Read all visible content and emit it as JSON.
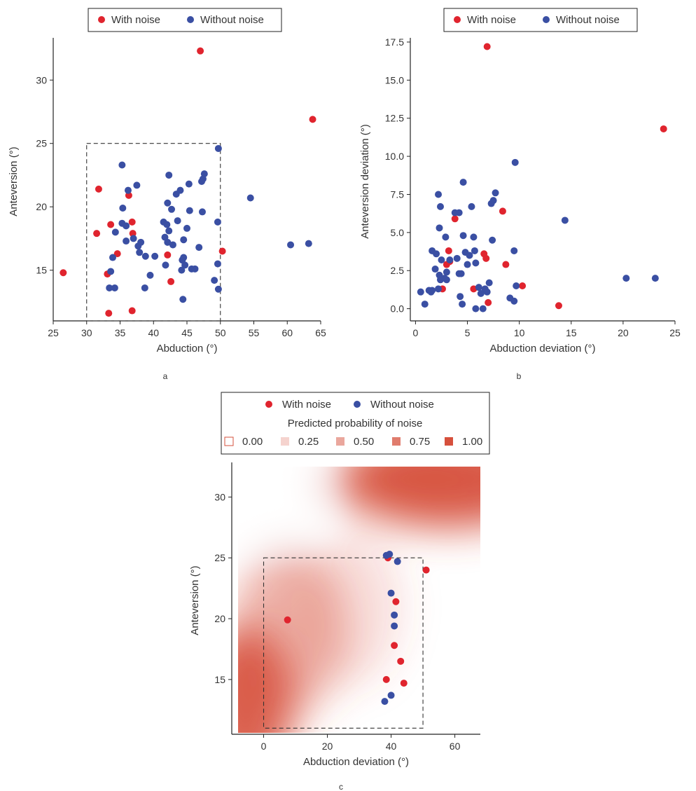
{
  "colors": {
    "noise": "#e0242e",
    "no_noise": "#3a4fa3",
    "heat_high": "#d6503c"
  },
  "chart_data": [
    {
      "id": "a",
      "type": "scatter",
      "panel_label": "a",
      "xlabel": "Abduction (°)",
      "ylabel": "Anteversion (°)",
      "xlim": [
        25,
        65
      ],
      "ylim": [
        11,
        33
      ],
      "xticks": [
        25,
        30,
        35,
        40,
        45,
        50,
        55,
        60,
        65
      ],
      "yticks": [
        15,
        20,
        25,
        30
      ],
      "safe_zone": {
        "x": [
          30,
          50
        ],
        "y": [
          11,
          25
        ]
      },
      "legend": {
        "placement": "top",
        "entries": [
          "With noise",
          "Without noise"
        ]
      },
      "series": [
        {
          "name": "With noise",
          "color": "#e0242e",
          "points": [
            [
              26.5,
              14.8
            ],
            [
              31.5,
              17.9
            ],
            [
              31.8,
              21.4
            ],
            [
              33.1,
              14.7
            ],
            [
              33.3,
              11.6
            ],
            [
              33.6,
              18.6
            ],
            [
              34.6,
              16.3
            ],
            [
              36.3,
              20.9
            ],
            [
              36.8,
              18.8
            ],
            [
              36.9,
              17.9
            ],
            [
              36.8,
              11.8
            ],
            [
              42.1,
              16.2
            ],
            [
              42.6,
              14.1
            ],
            [
              47.0,
              32.3
            ],
            [
              50.3,
              16.5
            ],
            [
              63.8,
              26.9
            ]
          ]
        },
        {
          "name": "Without noise",
          "color": "#3a4fa3",
          "points": [
            [
              33.4,
              13.6
            ],
            [
              33.6,
              14.9
            ],
            [
              33.9,
              16.0
            ],
            [
              34.2,
              13.6
            ],
            [
              34.3,
              18.0
            ],
            [
              35.3,
              18.7
            ],
            [
              35.3,
              23.3
            ],
            [
              35.4,
              19.9
            ],
            [
              35.9,
              17.3
            ],
            [
              35.9,
              18.5
            ],
            [
              36.2,
              21.3
            ],
            [
              37.0,
              17.5
            ],
            [
              37.5,
              21.7
            ],
            [
              37.7,
              16.9
            ],
            [
              37.9,
              16.4
            ],
            [
              38.1,
              17.2
            ],
            [
              38.7,
              13.6
            ],
            [
              38.8,
              16.1
            ],
            [
              39.5,
              14.6
            ],
            [
              40.2,
              16.1
            ],
            [
              41.5,
              18.8
            ],
            [
              41.7,
              17.6
            ],
            [
              41.8,
              15.4
            ],
            [
              42.0,
              18.6
            ],
            [
              42.1,
              17.2
            ],
            [
              42.1,
              20.3
            ],
            [
              42.3,
              22.5
            ],
            [
              42.3,
              18.1
            ],
            [
              42.7,
              19.8
            ],
            [
              42.9,
              17.0
            ],
            [
              43.4,
              21.0
            ],
            [
              43.6,
              18.9
            ],
            [
              44.0,
              21.3
            ],
            [
              44.2,
              15.0
            ],
            [
              44.3,
              15.8
            ],
            [
              44.4,
              12.7
            ],
            [
              44.5,
              16.0
            ],
            [
              44.5,
              17.4
            ],
            [
              44.7,
              15.4
            ],
            [
              45.0,
              18.3
            ],
            [
              45.3,
              21.8
            ],
            [
              45.4,
              19.7
            ],
            [
              45.7,
              15.1
            ],
            [
              46.2,
              15.1
            ],
            [
              46.8,
              16.8
            ],
            [
              47.2,
              22.0
            ],
            [
              47.3,
              19.6
            ],
            [
              47.4,
              22.2
            ],
            [
              47.6,
              22.6
            ],
            [
              49.1,
              14.2
            ],
            [
              49.6,
              18.8
            ],
            [
              49.6,
              15.5
            ],
            [
              49.7,
              13.5
            ],
            [
              49.7,
              24.6
            ],
            [
              54.5,
              20.7
            ],
            [
              60.5,
              17.0
            ],
            [
              63.2,
              17.1
            ]
          ]
        }
      ]
    },
    {
      "id": "b",
      "type": "scatter",
      "panel_label": "b",
      "xlabel": "Abduction deviation (°)",
      "ylabel": "Anteversion deviation (°)",
      "xlim": [
        -0.5,
        25
      ],
      "ylim": [
        -0.8,
        17.5
      ],
      "xticks": [
        0,
        5,
        10,
        15,
        20,
        25
      ],
      "yticks": [
        0.0,
        2.5,
        5.0,
        7.5,
        10.0,
        12.5,
        15.0,
        17.5
      ],
      "ytick_labels": [
        "0.0",
        "2.5",
        "5.0",
        "7.5",
        "10.0",
        "12.5",
        "15.0",
        "17.5"
      ],
      "legend": {
        "placement": "top-right",
        "entries": [
          "With noise",
          "Without noise"
        ]
      },
      "series": [
        {
          "name": "With noise",
          "color": "#e0242e",
          "points": [
            [
              2.6,
              1.3
            ],
            [
              3.0,
              2.9
            ],
            [
              3.2,
              3.8
            ],
            [
              3.3,
              3.1
            ],
            [
              3.8,
              5.9
            ],
            [
              5.6,
              1.3
            ],
            [
              6.6,
              3.6
            ],
            [
              6.8,
              3.3
            ],
            [
              7.0,
              0.4
            ],
            [
              6.9,
              17.2
            ],
            [
              8.4,
              6.4
            ],
            [
              8.7,
              2.9
            ],
            [
              10.3,
              1.5
            ],
            [
              13.8,
              0.2
            ],
            [
              23.9,
              11.8
            ]
          ]
        },
        {
          "name": "Without noise",
          "color": "#3a4fa3",
          "points": [
            [
              0.5,
              1.1
            ],
            [
              0.9,
              0.3
            ],
            [
              1.3,
              1.2
            ],
            [
              1.5,
              1.1
            ],
            [
              1.6,
              3.8
            ],
            [
              1.6,
              1.2
            ],
            [
              1.9,
              2.6
            ],
            [
              2.0,
              3.6
            ],
            [
              2.2,
              7.5
            ],
            [
              2.2,
              1.3
            ],
            [
              2.3,
              5.3
            ],
            [
              2.3,
              2.2
            ],
            [
              2.4,
              6.7
            ],
            [
              2.4,
              1.9
            ],
            [
              2.5,
              3.2
            ],
            [
              2.8,
              2.0
            ],
            [
              2.9,
              4.7
            ],
            [
              3.0,
              2.4
            ],
            [
              3.0,
              1.9
            ],
            [
              3.3,
              3.2
            ],
            [
              3.8,
              6.3
            ],
            [
              4.0,
              3.3
            ],
            [
              4.2,
              2.3
            ],
            [
              4.2,
              6.3
            ],
            [
              4.3,
              0.8
            ],
            [
              4.4,
              2.3
            ],
            [
              4.5,
              0.3
            ],
            [
              4.6,
              4.8
            ],
            [
              4.6,
              8.3
            ],
            [
              4.8,
              3.7
            ],
            [
              5.0,
              2.9
            ],
            [
              5.2,
              3.5
            ],
            [
              5.4,
              6.7
            ],
            [
              5.6,
              4.7
            ],
            [
              5.7,
              3.8
            ],
            [
              5.8,
              3.0
            ],
            [
              5.8,
              0.0
            ],
            [
              6.1,
              1.4
            ],
            [
              6.3,
              1.0
            ],
            [
              6.5,
              0.0
            ],
            [
              6.7,
              1.3
            ],
            [
              6.9,
              1.1
            ],
            [
              7.1,
              1.7
            ],
            [
              7.3,
              6.9
            ],
            [
              7.4,
              4.5
            ],
            [
              7.5,
              7.1
            ],
            [
              7.7,
              7.6
            ],
            [
              9.1,
              0.7
            ],
            [
              9.5,
              3.8
            ],
            [
              9.5,
              0.5
            ],
            [
              9.6,
              9.6
            ],
            [
              9.7,
              1.5
            ],
            [
              14.4,
              5.8
            ],
            [
              20.3,
              2.0
            ],
            [
              23.1,
              2.0
            ]
          ]
        }
      ]
    },
    {
      "id": "c",
      "type": "heatmap",
      "panel_label": "c",
      "xlabel": "Abduction deviation (°)",
      "ylabel": "Anteversion (°)",
      "xlim": [
        -10,
        68
      ],
      "ylim": [
        10.5,
        32.5
      ],
      "xticks": [
        0,
        20,
        40,
        60
      ],
      "yticks": [
        15,
        20,
        25,
        30
      ],
      "safe_zone": {
        "x": [
          0,
          50
        ],
        "y": [
          11,
          25
        ]
      },
      "legend": {
        "placement": "top",
        "entries": [
          "With noise",
          "Without noise"
        ],
        "fill_title": "Predicted probability of noise",
        "fill_levels": [
          0.0,
          0.25,
          0.5,
          0.75,
          1.0
        ],
        "fill_labels": [
          "0.00",
          "0.25",
          "0.50",
          "0.75",
          "1.00"
        ]
      },
      "series": [
        {
          "name": "With noise",
          "color": "#e0242e",
          "points": [
            [
              7.5,
              19.9
            ],
            [
              38.5,
              15.0
            ],
            [
              39.0,
              25.0
            ],
            [
              41.0,
              17.8
            ],
            [
              41.5,
              21.4
            ],
            [
              43.0,
              16.5
            ],
            [
              44.0,
              14.7
            ],
            [
              51.0,
              24.0
            ]
          ]
        },
        {
          "name": "Without noise",
          "color": "#3a4fa3",
          "points": [
            [
              38.0,
              13.2
            ],
            [
              38.5,
              25.2
            ],
            [
              39.5,
              25.3
            ],
            [
              40.0,
              13.7
            ],
            [
              40.0,
              22.1
            ],
            [
              41.0,
              20.3
            ],
            [
              41.0,
              19.4
            ],
            [
              42.0,
              24.7
            ]
          ]
        }
      ]
    }
  ]
}
